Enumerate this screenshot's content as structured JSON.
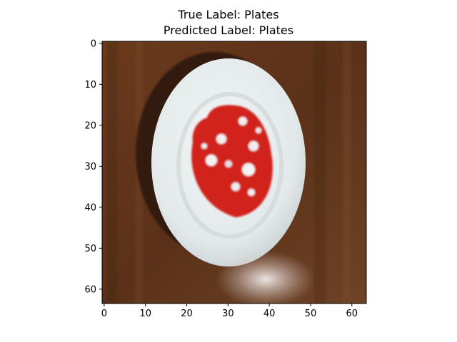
{
  "figure": {
    "title_line_1": "True Label: Plates",
    "title_line_2": "Predicted Label: Plates"
  },
  "image_plot": {
    "subject": "white plate with red food on a brown wooden table",
    "image_size": [
      64,
      64
    ],
    "x_ticks": [
      "0",
      "10",
      "20",
      "30",
      "40",
      "50",
      "60"
    ],
    "y_ticks": [
      "0",
      "10",
      "20",
      "30",
      "40",
      "50",
      "60"
    ],
    "x_tick_values": [
      0,
      10,
      20,
      30,
      40,
      50,
      60
    ],
    "y_tick_values": [
      0,
      10,
      20,
      30,
      40,
      50,
      60
    ],
    "colors": {
      "table": "#5e3319",
      "table_light": "#7a4524",
      "plate": "#e9eeef",
      "plate_shadow": "#c9d1d3",
      "food": "#d0201f",
      "food_highlight": "#f2f2f2",
      "glare": "#e6dfdc"
    }
  }
}
